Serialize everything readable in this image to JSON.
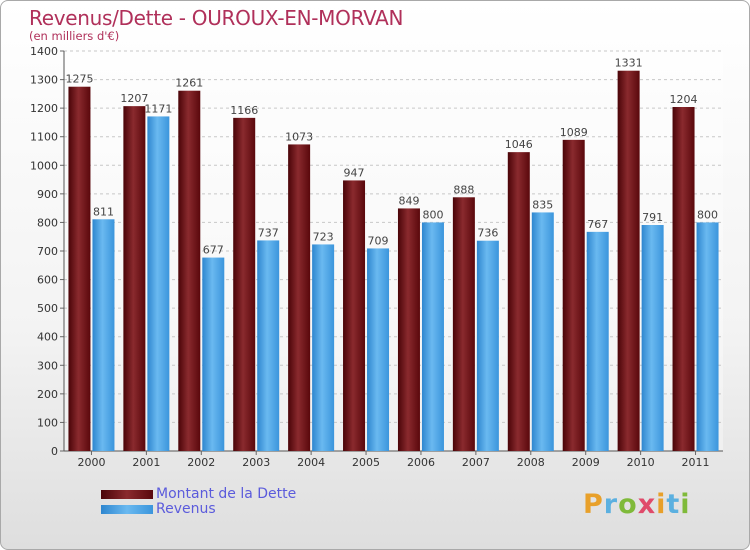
{
  "header": {
    "title": "Revenus/Dette - OUROUX-EN-MORVAN",
    "subtitle": "(en milliers d'€)"
  },
  "colors": {
    "dette": "#6e0d12",
    "revenus": "#4aa3e4",
    "title": "#b0305a",
    "legend_text": "#5b5bdc"
  },
  "chart_data": {
    "type": "bar",
    "categories": [
      "2000",
      "2001",
      "2002",
      "2003",
      "2004",
      "2005",
      "2006",
      "2007",
      "2008",
      "2009",
      "2010",
      "2011"
    ],
    "series": [
      {
        "name": "Montant de la Dette",
        "values": [
          1275,
          1207,
          1261,
          1166,
          1073,
          947,
          849,
          888,
          1046,
          1089,
          1331,
          1204
        ]
      },
      {
        "name": "Revenus",
        "values": [
          811,
          1171,
          677,
          737,
          723,
          709,
          800,
          736,
          835,
          767,
          791,
          800
        ]
      }
    ],
    "ylim": [
      0,
      1400
    ],
    "yticks": [
      0,
      100,
      200,
      300,
      400,
      500,
      600,
      700,
      800,
      900,
      1000,
      1100,
      1200,
      1300,
      1400
    ],
    "grid": true,
    "legend_position": "bottom-left"
  },
  "logo": {
    "letters": [
      "P",
      "r",
      "o",
      "x",
      "i",
      "t",
      "i"
    ]
  }
}
